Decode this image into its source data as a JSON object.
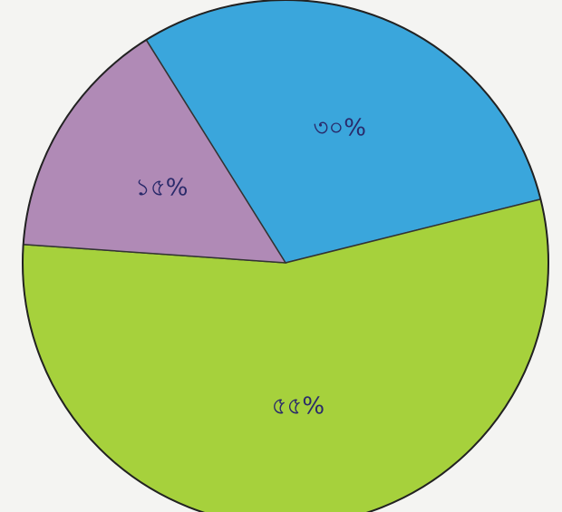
{
  "chart_data": {
    "type": "pie",
    "values": [
      30,
      55,
      15
    ],
    "value_labels": [
      "৩০%",
      "৫৫%",
      "১৫%"
    ],
    "colors": [
      "#3aa6dc",
      "#a6d13c",
      "#b08ab6"
    ]
  }
}
